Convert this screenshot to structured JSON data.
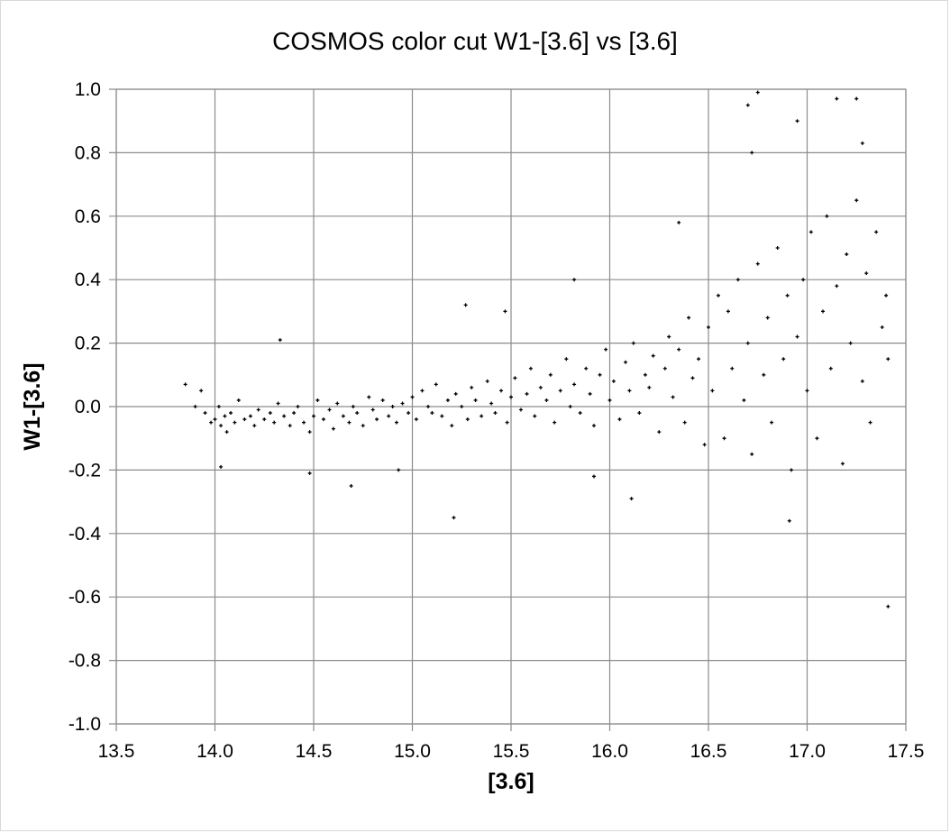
{
  "chart_data": {
    "type": "scatter",
    "title": "COSMOS color cut W1-[3.6] vs [3.6]",
    "xlabel": "[3.6]",
    "ylabel": "W1-[3.6]",
    "xlim": [
      13.5,
      17.5
    ],
    "ylim": [
      -1.0,
      1.0
    ],
    "x_ticks": [
      "13.5",
      "14.0",
      "14.5",
      "15.0",
      "15.5",
      "16.0",
      "16.5",
      "17.0",
      "17.5"
    ],
    "y_ticks": [
      "1.0",
      "0.8",
      "0.6",
      "0.4",
      "0.2",
      "0.0",
      "-0.2",
      "-0.4",
      "-0.6",
      "-0.8",
      "-1.0"
    ],
    "grid": true,
    "legend": "none",
    "marker": "small black cross",
    "series": [
      {
        "x": [
          13.85,
          13.9,
          13.93,
          13.95,
          13.98,
          14.0,
          14.02,
          14.03,
          14.05,
          14.06,
          14.08,
          14.1,
          14.12,
          14.15,
          14.18,
          14.2,
          14.22,
          14.25,
          14.28,
          14.3,
          14.32,
          14.35,
          14.38,
          14.4,
          14.42,
          14.45,
          14.48,
          14.5,
          14.52,
          14.55,
          14.58,
          14.6,
          14.62,
          14.65,
          14.68,
          14.7,
          14.72,
          14.75,
          14.78,
          14.8,
          14.82,
          14.85,
          14.88,
          14.9,
          14.92,
          14.95,
          14.98,
          15.0,
          15.02,
          15.05,
          15.08,
          15.1,
          15.12,
          15.15,
          15.18,
          15.2,
          15.22,
          15.25,
          15.28,
          15.3,
          15.32,
          15.35,
          15.38,
          15.4,
          15.42,
          15.45,
          15.48,
          15.5,
          15.52,
          15.55,
          15.58,
          15.6,
          15.62,
          15.65,
          15.68,
          15.7,
          15.72,
          15.75,
          15.78,
          15.8,
          15.82,
          15.85,
          15.88,
          15.9,
          15.92,
          15.95,
          15.98,
          16.0,
          16.02,
          16.05,
          16.08,
          16.1,
          16.12,
          16.15,
          16.18,
          16.2,
          16.22,
          16.25,
          16.28,
          16.3,
          16.32,
          16.35,
          16.38,
          16.4,
          16.42,
          16.45,
          16.48,
          16.5,
          16.52,
          16.55,
          16.58,
          16.6,
          16.62,
          16.65,
          16.68,
          16.7,
          16.72,
          16.75,
          16.78,
          16.8,
          16.82,
          16.85,
          16.88,
          16.9,
          16.92,
          16.95,
          16.98,
          17.0,
          17.02,
          17.05,
          17.08,
          17.1,
          17.12,
          17.15,
          17.18,
          17.2,
          17.22,
          17.25,
          17.28,
          17.3,
          17.32,
          17.35,
          17.38,
          17.4,
          17.41,
          14.03,
          14.33,
          14.48,
          14.69,
          14.93,
          15.21,
          15.27,
          15.47,
          15.82,
          15.92,
          16.11,
          16.35,
          16.75,
          16.91,
          17.25,
          17.41,
          16.7,
          16.72,
          16.95,
          17.15,
          17.28
        ],
        "y": [
          0.07,
          0.0,
          0.05,
          -0.02,
          -0.05,
          -0.04,
          0.0,
          -0.06,
          -0.03,
          -0.08,
          -0.02,
          -0.05,
          0.02,
          -0.04,
          -0.03,
          -0.06,
          -0.01,
          -0.04,
          -0.02,
          -0.05,
          0.01,
          -0.03,
          -0.06,
          -0.02,
          0.0,
          -0.05,
          -0.08,
          -0.03,
          0.02,
          -0.04,
          -0.01,
          -0.07,
          0.01,
          -0.03,
          -0.05,
          0.0,
          -0.02,
          -0.06,
          0.03,
          -0.01,
          -0.04,
          0.02,
          -0.03,
          0.0,
          -0.05,
          0.01,
          -0.02,
          0.03,
          -0.04,
          0.05,
          0.0,
          -0.02,
          0.07,
          -0.03,
          0.02,
          -0.06,
          0.04,
          0.0,
          -0.04,
          0.06,
          0.02,
          -0.03,
          0.08,
          0.01,
          -0.02,
          0.05,
          -0.05,
          0.03,
          0.09,
          -0.01,
          0.04,
          0.12,
          -0.03,
          0.06,
          0.02,
          0.1,
          -0.05,
          0.05,
          0.15,
          0.0,
          0.07,
          -0.02,
          0.12,
          0.04,
          -0.06,
          0.1,
          0.18,
          0.02,
          0.08,
          -0.04,
          0.14,
          0.05,
          0.2,
          -0.02,
          0.1,
          0.06,
          0.16,
          -0.08,
          0.12,
          0.22,
          0.03,
          0.18,
          -0.05,
          0.28,
          0.09,
          0.15,
          -0.12,
          0.25,
          0.05,
          0.35,
          -0.1,
          0.3,
          0.12,
          0.4,
          0.02,
          0.2,
          -0.15,
          0.45,
          0.1,
          0.28,
          -0.05,
          0.5,
          0.15,
          0.35,
          -0.2,
          0.22,
          0.4,
          0.05,
          0.55,
          -0.1,
          0.3,
          0.6,
          0.12,
          0.38,
          -0.18,
          0.48,
          0.2,
          0.65,
          0.08,
          0.42,
          -0.05,
          0.55,
          0.25,
          0.35,
          0.15,
          -0.19,
          0.21,
          -0.21,
          -0.25,
          -0.2,
          -0.35,
          0.32,
          0.3,
          0.4,
          -0.22,
          -0.29,
          0.58,
          0.99,
          -0.36,
          0.97,
          -0.63,
          0.95,
          0.8,
          0.9,
          0.97,
          0.83
        ]
      }
    ]
  }
}
